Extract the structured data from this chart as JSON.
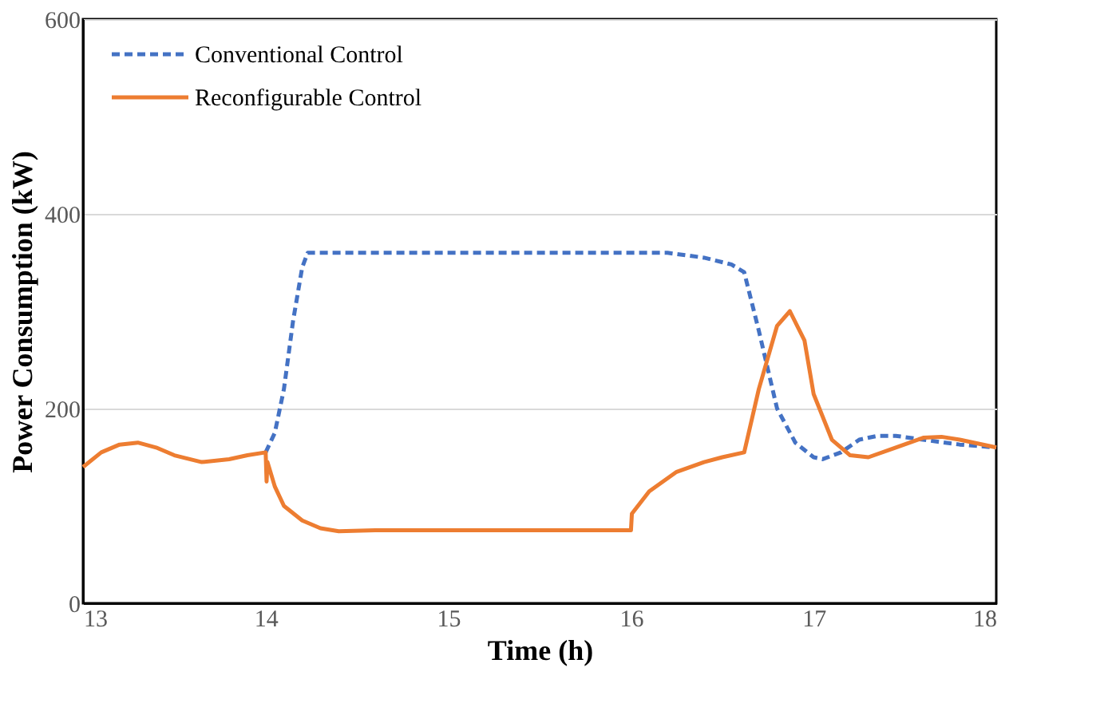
{
  "chart_data": {
    "type": "line",
    "xlabel": "Time (h)",
    "ylabel": "Power Consumption (kW)",
    "xlim": [
      13,
      18
    ],
    "xticks": [
      13,
      14,
      15,
      16,
      17,
      18
    ],
    "ylim": [
      0,
      600
    ],
    "yticks": [
      0,
      200,
      400,
      600
    ],
    "grid": "y",
    "legend": "top left",
    "marker": "none",
    "series": [
      {
        "name": "Conventional Control",
        "color": "#4472c4",
        "line_style": "dashed",
        "x": [
          14.0,
          14.05,
          14.1,
          14.15,
          14.2,
          14.23,
          14.3,
          15,
          15.5,
          16,
          16.2,
          16.4,
          16.55,
          16.62,
          16.7,
          16.8,
          16.9,
          17.0,
          17.05,
          17.15,
          17.25,
          17.35,
          17.45,
          17.6,
          17.8,
          18
        ],
        "values": [
          155,
          175,
          220,
          290,
          345,
          360,
          360,
          360,
          360,
          360,
          360,
          355,
          348,
          340,
          280,
          200,
          165,
          150,
          148,
          155,
          168,
          172,
          172,
          168,
          163,
          160
        ]
      },
      {
        "name": "Reconfigurable Control",
        "color": "#ed7d31",
        "line_style": "solid",
        "x": [
          13,
          13.1,
          13.2,
          13.3,
          13.4,
          13.5,
          13.65,
          13.8,
          13.9,
          14.0,
          14.005,
          14.01,
          14.05,
          14.1,
          14.2,
          14.3,
          14.4,
          14.6,
          15,
          15.5,
          16,
          16.005,
          16.1,
          16.25,
          16.4,
          16.5,
          16.62,
          16.7,
          16.8,
          16.87,
          16.95,
          17.0,
          17.1,
          17.2,
          17.3,
          17.45,
          17.6,
          17.7,
          17.8,
          18
        ],
        "values": [
          140,
          155,
          163,
          165,
          160,
          152,
          145,
          148,
          152,
          155,
          125,
          145,
          120,
          100,
          85,
          77,
          74,
          75,
          75,
          75,
          75,
          92,
          115,
          135,
          145,
          150,
          155,
          220,
          285,
          300,
          270,
          215,
          168,
          152,
          150,
          160,
          170,
          171,
          168,
          160
        ]
      }
    ]
  }
}
